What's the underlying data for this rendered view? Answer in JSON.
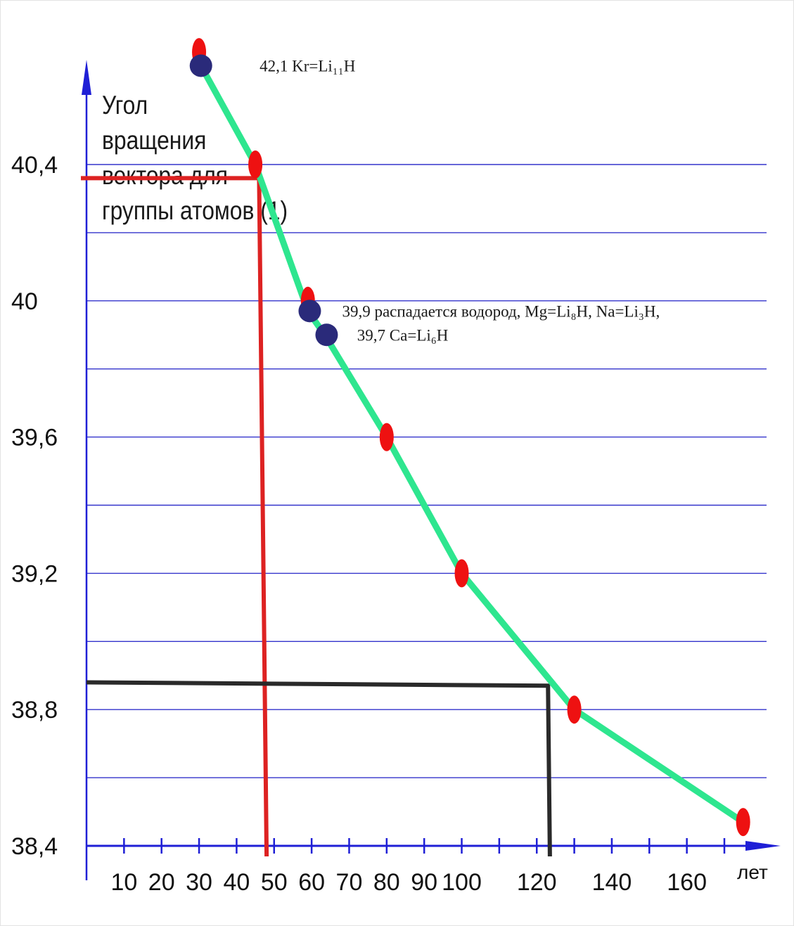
{
  "chart_data": {
    "type": "line",
    "title": "",
    "ylabel_lines": [
      "Угол",
      "вращения",
      "вектора для",
      "группы атомов (1)"
    ],
    "xlabel": "лет",
    "y_ticks": [
      "40,4",
      "40",
      "39,6",
      "39,2",
      "38,8",
      "38,4"
    ],
    "x_ticks": [
      {
        "value": 10,
        "label": "10"
      },
      {
        "value": 20,
        "label": "20"
      },
      {
        "value": 30,
        "label": "30"
      },
      {
        "value": 40,
        "label": "40"
      },
      {
        "value": 50,
        "label": "50"
      },
      {
        "value": 60,
        "label": "60"
      },
      {
        "value": 70,
        "label": "70"
      },
      {
        "value": 80,
        "label": "80"
      },
      {
        "value": 90,
        "label": "90"
      },
      {
        "value": 100,
        "label": "100"
      },
      {
        "value": 120,
        "label": "120"
      },
      {
        "value": 140,
        "label": "140"
      },
      {
        "value": 160,
        "label": "160"
      }
    ],
    "grid": true,
    "series": [
      {
        "color": "#2ee68f",
        "x": [
          30,
          45,
          59,
          63.5,
          80,
          100,
          130,
          175
        ],
        "y": [
          40.7,
          40.4,
          39.97,
          39.9,
          39.6,
          39.2,
          38.8,
          38.47
        ]
      }
    ],
    "red_points": {
      "color": "#ee1111",
      "x": [
        30,
        45,
        59,
        80,
        100,
        130,
        175
      ],
      "y": [
        40.73,
        40.4,
        40.0,
        39.6,
        39.2,
        38.8,
        38.47
      ]
    },
    "blue_points": {
      "color": "#2a2a7a",
      "x": [
        30.5,
        59.5,
        64
      ],
      "y": [
        40.69,
        39.97,
        39.9
      ]
    },
    "annotations": [
      {
        "text": "42,1 Kr=Li₁₁H",
        "x": 42,
        "y": 40.69
      },
      {
        "text": "39,9 распадается водород, Mg=Li₈H, Na=Li₃H,",
        "x": 64,
        "y": 39.97
      },
      {
        "text": "39,7  Ca=Li₆H",
        "x": 68,
        "y": 39.9
      }
    ],
    "guide_lines": [
      {
        "color": "#dd2222",
        "points": [
          [
            0,
            40.36
          ],
          [
            46,
            40.36
          ],
          [
            48,
            38.4
          ]
        ]
      },
      {
        "color": "#2a2a2a",
        "points": [
          [
            0,
            38.88
          ],
          [
            123,
            38.87
          ],
          [
            123.5,
            38.4
          ]
        ]
      }
    ],
    "axis_color": "#1f1fd6",
    "grid_color": "#3333cc"
  }
}
